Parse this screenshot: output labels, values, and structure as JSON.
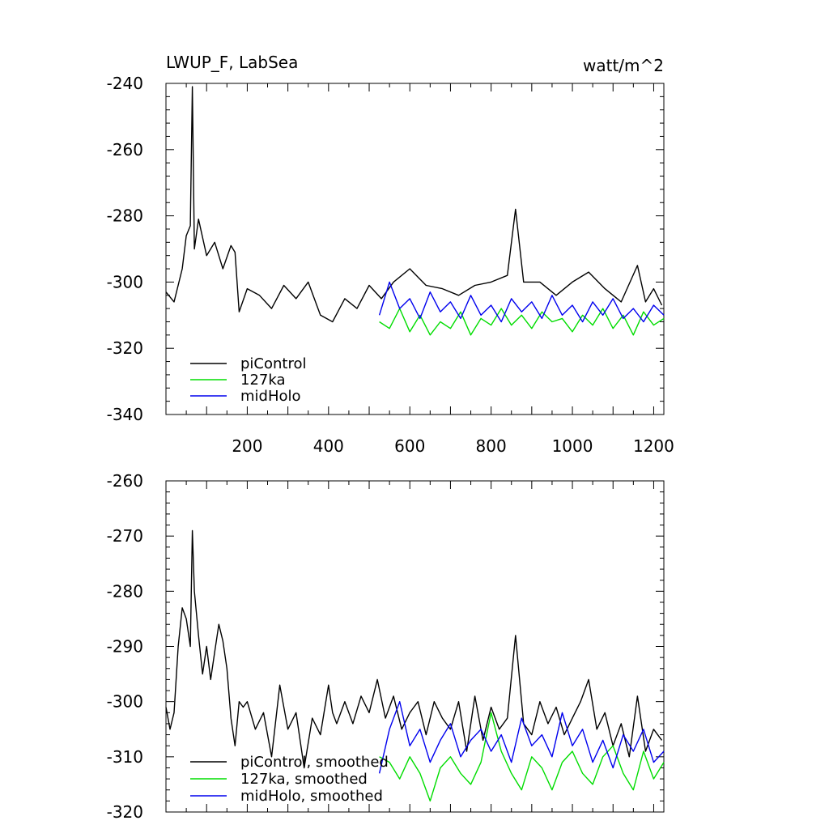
{
  "chart_data": [
    {
      "type": "line",
      "title": "LWUP_F, LabSea",
      "units": "watt/m^2",
      "xlim": [
        0,
        1225
      ],
      "ylim": [
        -340,
        -240
      ],
      "xticks": [
        200,
        400,
        600,
        800,
        1000,
        1200
      ],
      "yticks": [
        -340,
        -320,
        -300,
        -280,
        -260,
        -240
      ],
      "legend_position": "bottom-left",
      "series": [
        {
          "name": "piControl",
          "color": "#000000",
          "x": [
            0,
            20,
            40,
            50,
            60,
            65,
            70,
            80,
            100,
            120,
            140,
            160,
            170,
            180,
            200,
            230,
            260,
            290,
            320,
            350,
            380,
            410,
            440,
            470,
            500,
            530,
            560,
            600,
            640,
            680,
            720,
            760,
            800,
            840,
            860,
            880,
            920,
            960,
            1000,
            1040,
            1080,
            1120,
            1160,
            1180,
            1200,
            1220
          ],
          "y": [
            -303,
            -306,
            -296,
            -286,
            -283,
            -241,
            -290,
            -281,
            -292,
            -288,
            -296,
            -289,
            -291,
            -309,
            -302,
            -304,
            -308,
            -301,
            -305,
            -300,
            -310,
            -312,
            -305,
            -308,
            -301,
            -305,
            -300,
            -296,
            -301,
            -302,
            -304,
            -301,
            -300,
            -298,
            -278,
            -300,
            -300,
            -304,
            -300,
            -297,
            -302,
            -306,
            -295,
            -306,
            -302,
            -307
          ]
        },
        {
          "name": "127ka",
          "color": "#00dd00",
          "x": [
            525,
            550,
            575,
            600,
            625,
            650,
            675,
            700,
            725,
            750,
            775,
            800,
            825,
            850,
            875,
            900,
            925,
            950,
            975,
            1000,
            1025,
            1050,
            1075,
            1100,
            1125,
            1150,
            1175,
            1200,
            1225
          ],
          "y": [
            -312,
            -314,
            -308,
            -315,
            -310,
            -316,
            -312,
            -314,
            -309,
            -316,
            -311,
            -313,
            -308,
            -313,
            -310,
            -314,
            -309,
            -312,
            -311,
            -315,
            -310,
            -313,
            -308,
            -314,
            -310,
            -316,
            -309,
            -313,
            -311
          ]
        },
        {
          "name": "midHolo",
          "color": "#0000ee",
          "x": [
            525,
            550,
            575,
            600,
            625,
            650,
            675,
            700,
            725,
            750,
            775,
            800,
            825,
            850,
            875,
            900,
            925,
            950,
            975,
            1000,
            1025,
            1050,
            1075,
            1100,
            1125,
            1150,
            1175,
            1200,
            1225
          ],
          "y": [
            -310,
            -300,
            -308,
            -305,
            -311,
            -303,
            -309,
            -306,
            -311,
            -304,
            -310,
            -307,
            -312,
            -305,
            -309,
            -306,
            -311,
            -304,
            -310,
            -307,
            -312,
            -306,
            -310,
            -305,
            -311,
            -308,
            -312,
            -307,
            -310
          ]
        }
      ]
    },
    {
      "type": "line",
      "title": "",
      "xlim": [
        0,
        1225
      ],
      "ylim": [
        -320,
        -260
      ],
      "yticks": [
        -320,
        -310,
        -300,
        -290,
        -280,
        -270,
        -260
      ],
      "legend_position": "bottom-left",
      "series": [
        {
          "name": "piControl, smoothed",
          "color": "#000000",
          "x": [
            0,
            10,
            20,
            30,
            40,
            50,
            60,
            65,
            70,
            80,
            90,
            100,
            110,
            120,
            130,
            140,
            150,
            160,
            170,
            180,
            190,
            200,
            220,
            240,
            260,
            280,
            300,
            320,
            340,
            360,
            380,
            400,
            410,
            420,
            440,
            460,
            480,
            500,
            520,
            540,
            560,
            580,
            600,
            620,
            640,
            660,
            680,
            700,
            720,
            740,
            760,
            780,
            800,
            820,
            840,
            860,
            880,
            900,
            920,
            940,
            960,
            980,
            1000,
            1020,
            1040,
            1060,
            1080,
            1100,
            1120,
            1140,
            1160,
            1180,
            1200,
            1220
          ],
          "y": [
            -301,
            -305,
            -302,
            -290,
            -283,
            -285,
            -290,
            -269,
            -280,
            -288,
            -295,
            -290,
            -296,
            -291,
            -286,
            -289,
            -294,
            -303,
            -308,
            -300,
            -301,
            -300,
            -305,
            -302,
            -310,
            -297,
            -305,
            -302,
            -312,
            -303,
            -306,
            -297,
            -302,
            -304,
            -300,
            -304,
            -299,
            -302,
            -296,
            -303,
            -299,
            -305,
            -302,
            -300,
            -306,
            -300,
            -303,
            -305,
            -300,
            -309,
            -299,
            -307,
            -301,
            -305,
            -303,
            -288,
            -304,
            -306,
            -300,
            -304,
            -301,
            -306,
            -303,
            -300,
            -296,
            -305,
            -302,
            -308,
            -304,
            -310,
            -299,
            -309,
            -305,
            -307
          ]
        },
        {
          "name": "127ka, smoothed",
          "color": "#00dd00",
          "x": [
            525,
            550,
            575,
            600,
            625,
            650,
            675,
            700,
            725,
            750,
            775,
            800,
            825,
            850,
            875,
            900,
            925,
            950,
            975,
            1000,
            1025,
            1050,
            1075,
            1100,
            1125,
            1150,
            1175,
            1200,
            1225
          ],
          "y": [
            -310,
            -311,
            -314,
            -310,
            -313,
            -318,
            -312,
            -310,
            -313,
            -315,
            -311,
            -302,
            -309,
            -313,
            -316,
            -310,
            -312,
            -316,
            -311,
            -309,
            -313,
            -315,
            -310,
            -308,
            -313,
            -316,
            -309,
            -314,
            -311
          ]
        },
        {
          "name": "midHolo, smoothed",
          "color": "#0000ee",
          "x": [
            525,
            550,
            575,
            600,
            625,
            650,
            675,
            700,
            725,
            750,
            775,
            800,
            825,
            850,
            875,
            900,
            925,
            950,
            975,
            1000,
            1025,
            1050,
            1075,
            1100,
            1125,
            1150,
            1175,
            1200,
            1225
          ],
          "y": [
            -313,
            -305,
            -300,
            -308,
            -305,
            -311,
            -307,
            -304,
            -310,
            -307,
            -305,
            -309,
            -306,
            -311,
            -303,
            -308,
            -306,
            -310,
            -302,
            -308,
            -305,
            -311,
            -307,
            -312,
            -306,
            -309,
            -305,
            -311,
            -309
          ]
        }
      ]
    }
  ]
}
